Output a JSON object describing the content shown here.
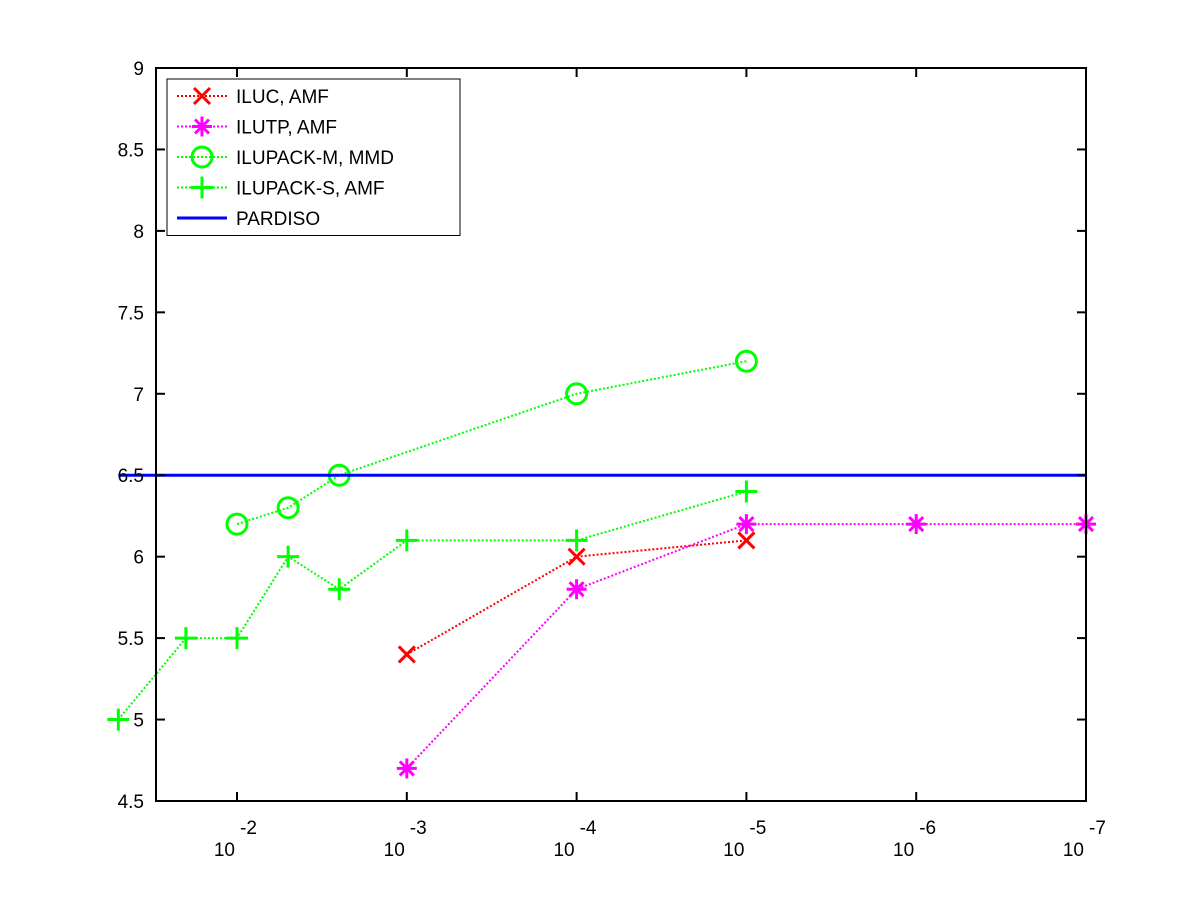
{
  "chart_data": {
    "type": "line",
    "xscale": "log",
    "xlim": [
      0.03,
      1e-07
    ],
    "ylim": [
      4.5,
      9
    ],
    "grid": false,
    "legend_position": "top-left",
    "xlabel": "",
    "ylabel": "",
    "title": "",
    "yticks": [
      "4.5",
      "5",
      "5.5",
      "6",
      "6.5",
      "7",
      "7.5",
      "8",
      "8.5",
      "9"
    ],
    "yticks_values": [
      4.5,
      5,
      5.5,
      6,
      6.5,
      7,
      7.5,
      8,
      8.5,
      9
    ],
    "xticks": [
      {
        "value": 0.01,
        "base": "10",
        "exp": "-2"
      },
      {
        "value": 0.001,
        "base": "10",
        "exp": "-3"
      },
      {
        "value": 0.0001,
        "base": "10",
        "exp": "-4"
      },
      {
        "value": 1e-05,
        "base": "10",
        "exp": "-5"
      },
      {
        "value": 1e-06,
        "base": "10",
        "exp": "-6"
      },
      {
        "value": 1e-07,
        "base": "10",
        "exp": "-7"
      }
    ],
    "series": [
      {
        "name": "ILUC, AMF",
        "color": "#ff0000",
        "marker": "x",
        "line": "dotted",
        "x": [
          0.001,
          0.0001,
          1e-05
        ],
        "y": [
          5.4,
          6.0,
          6.1
        ]
      },
      {
        "name": "ILUTP, AMF",
        "color": "#ff00ff",
        "marker": "star",
        "line": "dotted",
        "x": [
          0.001,
          0.0001,
          1e-05,
          1e-06,
          1e-07
        ],
        "y": [
          4.7,
          5.8,
          6.2,
          6.2,
          6.2
        ]
      },
      {
        "name": "ILUPACK-M, MMD",
        "color": "#00ff00",
        "marker": "circle",
        "line": "dotted",
        "x": [
          0.01,
          0.005,
          0.0025,
          0.0001,
          1e-05
        ],
        "y": [
          6.2,
          6.3,
          6.5,
          7.0,
          7.2
        ]
      },
      {
        "name": "ILUPACK-S, AMF",
        "color": "#00ff00",
        "marker": "plus",
        "line": "dotted",
        "x": [
          0.05,
          0.02,
          0.01,
          0.005,
          0.0025,
          0.001,
          0.0001,
          1e-05
        ],
        "y": [
          5.0,
          5.5,
          5.5,
          6.0,
          5.8,
          6.1,
          6.1,
          6.4
        ]
      },
      {
        "name": "PARDISO",
        "color": "#0000ff",
        "marker": "none",
        "line": "solid",
        "x": [
          0.05,
          1e-07
        ],
        "y": [
          6.5,
          6.5
        ]
      }
    ]
  }
}
